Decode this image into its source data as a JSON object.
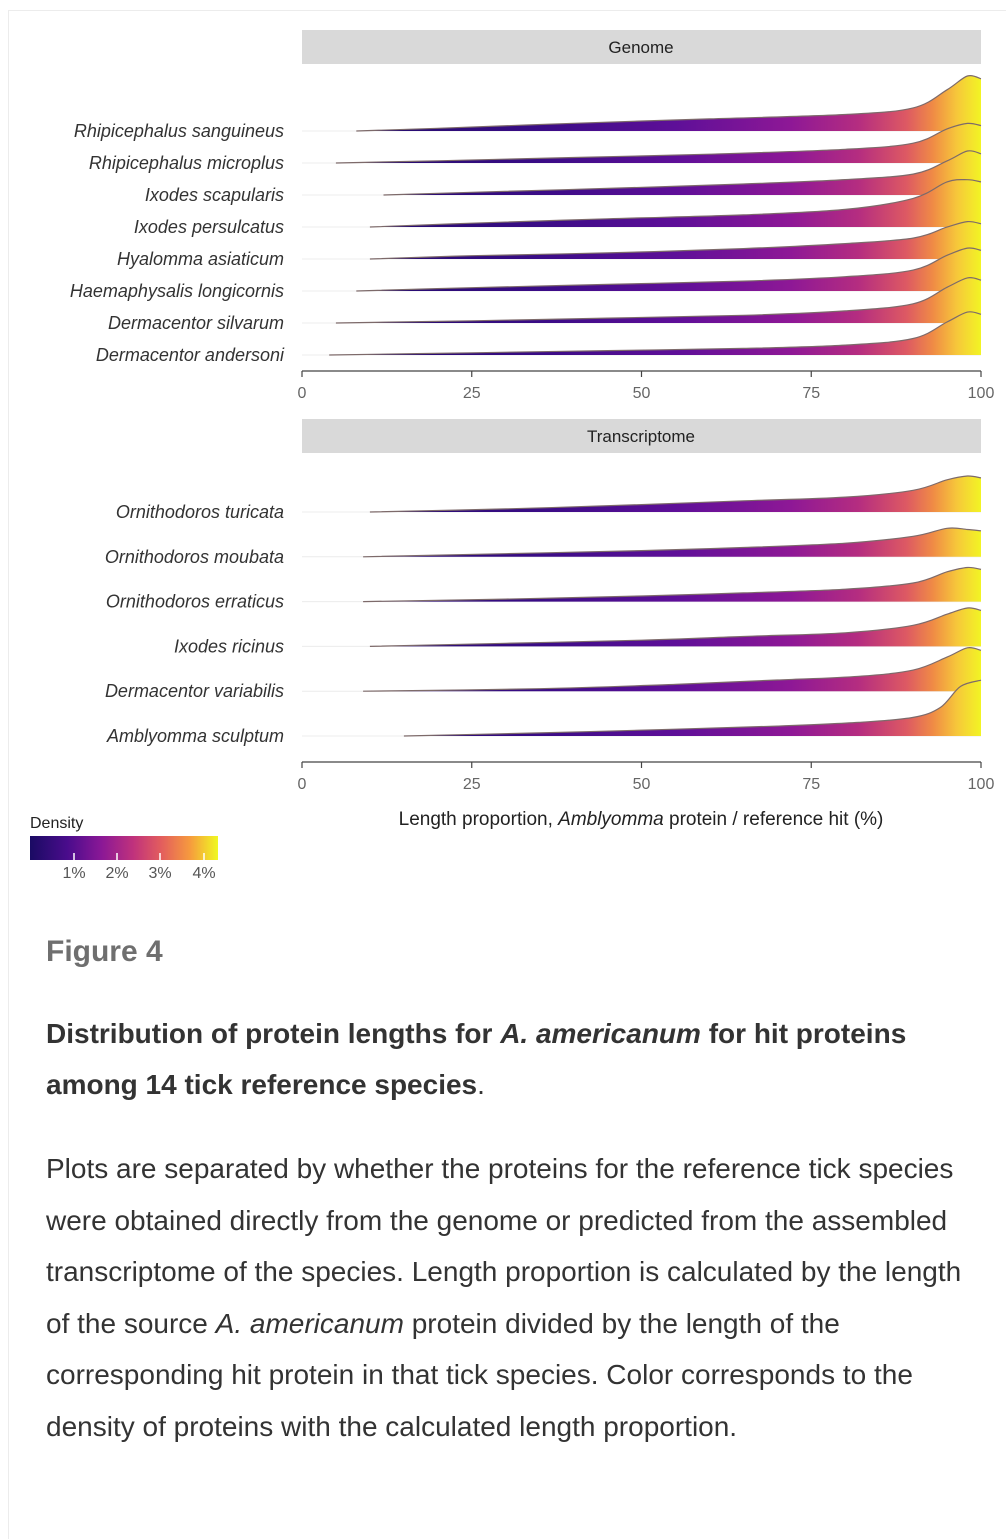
{
  "chart_data": [
    {
      "type": "ridgeline",
      "strip_label": "Genome",
      "categories": [
        "Rhipicephalus sanguineus",
        "Rhipicephalus microplus",
        "Ixodes scapularis",
        "Ixodes persulcatus",
        "Hyalomma asiaticum",
        "Haemaphysalis longicornis",
        "Dermacentor silvarum",
        "Dermacentor andersoni"
      ],
      "x_ticks": [
        "0",
        "25",
        "50",
        "75",
        "100"
      ],
      "xlim": [
        0,
        100
      ],
      "series": [
        {
          "min_x": 8,
          "density": [
            [
              8,
              0.0
            ],
            [
              20,
              0.05
            ],
            [
              40,
              0.14
            ],
            [
              60,
              0.22
            ],
            [
              80,
              0.3
            ],
            [
              90,
              0.42
            ],
            [
              95,
              0.75
            ],
            [
              98,
              1.0
            ],
            [
              100,
              0.95
            ]
          ]
        },
        {
          "min_x": 5,
          "density": [
            [
              5,
              0.0
            ],
            [
              20,
              0.04
            ],
            [
              40,
              0.1
            ],
            [
              60,
              0.16
            ],
            [
              80,
              0.25
            ],
            [
              90,
              0.36
            ],
            [
              95,
              0.62
            ],
            [
              98,
              0.72
            ],
            [
              100,
              0.68
            ]
          ]
        },
        {
          "min_x": 12,
          "density": [
            [
              12,
              0.0
            ],
            [
              25,
              0.05
            ],
            [
              45,
              0.12
            ],
            [
              65,
              0.2
            ],
            [
              80,
              0.28
            ],
            [
              90,
              0.38
            ],
            [
              95,
              0.62
            ],
            [
              98,
              0.8
            ],
            [
              100,
              0.75
            ]
          ]
        },
        {
          "min_x": 10,
          "density": [
            [
              10,
              0.0
            ],
            [
              25,
              0.07
            ],
            [
              45,
              0.15
            ],
            [
              65,
              0.22
            ],
            [
              80,
              0.32
            ],
            [
              90,
              0.52
            ],
            [
              95,
              0.82
            ],
            [
              98,
              0.86
            ],
            [
              100,
              0.82
            ]
          ]
        },
        {
          "min_x": 10,
          "density": [
            [
              10,
              0.0
            ],
            [
              25,
              0.06
            ],
            [
              45,
              0.11
            ],
            [
              65,
              0.19
            ],
            [
              80,
              0.28
            ],
            [
              90,
              0.38
            ],
            [
              95,
              0.58
            ],
            [
              98,
              0.68
            ],
            [
              100,
              0.64
            ]
          ]
        },
        {
          "min_x": 8,
          "density": [
            [
              8,
              0.0
            ],
            [
              25,
              0.06
            ],
            [
              45,
              0.12
            ],
            [
              65,
              0.18
            ],
            [
              80,
              0.26
            ],
            [
              90,
              0.38
            ],
            [
              95,
              0.65
            ],
            [
              98,
              0.78
            ],
            [
              100,
              0.74
            ]
          ]
        },
        {
          "min_x": 5,
          "density": [
            [
              5,
              0.0
            ],
            [
              25,
              0.04
            ],
            [
              45,
              0.09
            ],
            [
              65,
              0.14
            ],
            [
              80,
              0.22
            ],
            [
              90,
              0.35
            ],
            [
              95,
              0.65
            ],
            [
              98,
              0.82
            ],
            [
              100,
              0.78
            ]
          ]
        },
        {
          "min_x": 4,
          "density": [
            [
              4,
              0.0
            ],
            [
              25,
              0.04
            ],
            [
              45,
              0.08
            ],
            [
              65,
              0.12
            ],
            [
              80,
              0.18
            ],
            [
              90,
              0.3
            ],
            [
              95,
              0.6
            ],
            [
              98,
              0.78
            ],
            [
              100,
              0.74
            ]
          ]
        }
      ]
    },
    {
      "type": "ridgeline",
      "strip_label": "Transcriptome",
      "categories": [
        "Ornithodoros turicata",
        "Ornithodoros moubata",
        "Ornithodoros erraticus",
        "Ixodes ricinus",
        "Dermacentor variabilis",
        "Amblyomma sculptum"
      ],
      "x_ticks": [
        "0",
        "25",
        "50",
        "75",
        "100"
      ],
      "xlim": [
        0,
        100
      ],
      "xlabel": "Length proportion, Amblyomma protein / reference hit (%)",
      "series": [
        {
          "min_x": 10,
          "density": [
            [
              10,
              0.0
            ],
            [
              30,
              0.05
            ],
            [
              50,
              0.12
            ],
            [
              65,
              0.18
            ],
            [
              80,
              0.24
            ],
            [
              90,
              0.35
            ],
            [
              95,
              0.52
            ],
            [
              98,
              0.58
            ],
            [
              100,
              0.55
            ]
          ]
        },
        {
          "min_x": 9,
          "density": [
            [
              9,
              0.0
            ],
            [
              30,
              0.05
            ],
            [
              50,
              0.1
            ],
            [
              65,
              0.15
            ],
            [
              80,
              0.22
            ],
            [
              90,
              0.33
            ],
            [
              95,
              0.46
            ],
            [
              98,
              0.44
            ],
            [
              100,
              0.42
            ]
          ]
        },
        {
          "min_x": 9,
          "density": [
            [
              9,
              0.0
            ],
            [
              30,
              0.04
            ],
            [
              50,
              0.09
            ],
            [
              65,
              0.14
            ],
            [
              80,
              0.2
            ],
            [
              90,
              0.3
            ],
            [
              95,
              0.48
            ],
            [
              98,
              0.55
            ],
            [
              100,
              0.52
            ]
          ]
        },
        {
          "min_x": 10,
          "density": [
            [
              10,
              0.0
            ],
            [
              30,
              0.05
            ],
            [
              50,
              0.1
            ],
            [
              65,
              0.16
            ],
            [
              80,
              0.22
            ],
            [
              90,
              0.34
            ],
            [
              95,
              0.52
            ],
            [
              98,
              0.62
            ],
            [
              100,
              0.58
            ]
          ]
        },
        {
          "min_x": 9,
          "density": [
            [
              9,
              0.0
            ],
            [
              35,
              0.04
            ],
            [
              55,
              0.11
            ],
            [
              70,
              0.18
            ],
            [
              82,
              0.24
            ],
            [
              90,
              0.34
            ],
            [
              95,
              0.55
            ],
            [
              98,
              0.7
            ],
            [
              100,
              0.66
            ]
          ]
        },
        {
          "min_x": 15,
          "density": [
            [
              15,
              0.0
            ],
            [
              35,
              0.05
            ],
            [
              55,
              0.11
            ],
            [
              70,
              0.16
            ],
            [
              82,
              0.22
            ],
            [
              90,
              0.3
            ],
            [
              94,
              0.46
            ],
            [
              97,
              0.8
            ],
            [
              100,
              0.9
            ]
          ]
        }
      ]
    }
  ],
  "legend": {
    "title": "Density",
    "tick_labels": [
      "1%",
      "2%",
      "3%",
      "4%"
    ],
    "colors": [
      "#1a0b63",
      "#4a0c8c",
      "#8a1896",
      "#c0327c",
      "#e35e5d",
      "#f69a3e",
      "#f3dc36",
      "#f0f921"
    ]
  },
  "caption": {
    "figure_label": "Figure 4",
    "title_part1": "Distribution of protein lengths for ",
    "title_species": "A. americanum",
    "title_part2": " for hit proteins among 14 tick reference species",
    "title_end": ".",
    "desc_part1": "Plots are separated by whether the proteins for the reference tick species were obtained directly from the genome or predicted from the assembled transcriptome of the species. Length proportion is calculated by the length of the source ",
    "desc_species": "A. americanum",
    "desc_part2": " protein divided by the length of the corresponding hit protein in that tick species. Color corresponds to the density of proteins with the calculated length proportion."
  }
}
